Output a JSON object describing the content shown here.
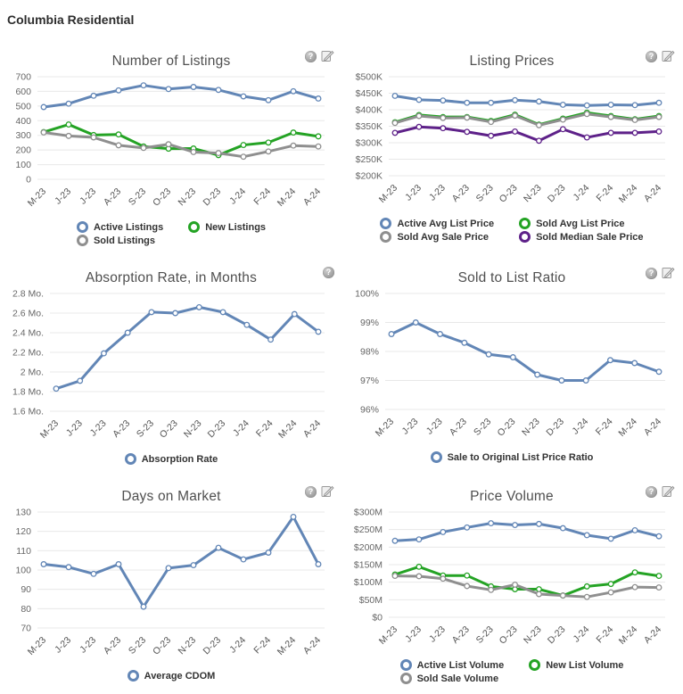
{
  "page": {
    "title": "Columbia Residential"
  },
  "chart_data": [
    {
      "type": "line",
      "title": "Number of Listings",
      "grid": true,
      "legend_position": "bottom",
      "icons": [
        "help-icon",
        "edit-chart-icon"
      ],
      "x_labels": [
        "M-23",
        "J-23",
        "J-23",
        "A-23",
        "S-23",
        "O-23",
        "N-23",
        "D-23",
        "J-24",
        "F-24",
        "M-24",
        "A-24"
      ],
      "y_ticks": [
        "700",
        "600",
        "500",
        "400",
        "300",
        "200",
        "100",
        "0"
      ],
      "ylim": [
        0,
        700
      ],
      "series": [
        {
          "name": "Active Listings",
          "color": "#6286b6",
          "values": [
            493,
            516,
            570,
            607,
            641,
            616,
            630,
            610,
            566,
            540,
            601,
            551
          ]
        },
        {
          "name": "New Listings",
          "color": "#24a324",
          "values": [
            322,
            374,
            302,
            306,
            224,
            209,
            210,
            165,
            234,
            251,
            319,
            293
          ]
        },
        {
          "name": "Sold Listings",
          "color": "#8f8f8f",
          "values": [
            320,
            296,
            286,
            232,
            214,
            239,
            186,
            179,
            154,
            190,
            230,
            224
          ]
        }
      ]
    },
    {
      "type": "line",
      "title": "Listing Prices",
      "grid": true,
      "legend_position": "bottom",
      "icons": [
        "help-icon",
        "edit-chart-icon"
      ],
      "x_labels": [
        "M-23",
        "J-23",
        "J-23",
        "A-23",
        "S-23",
        "O-23",
        "N-23",
        "D-23",
        "J-24",
        "F-24",
        "M-24",
        "A-24"
      ],
      "y_ticks": [
        "$500K",
        "$450K",
        "$400K",
        "$350K",
        "$300K",
        "$250K",
        "$200K"
      ],
      "ylim": [
        200,
        500
      ],
      "unit": "thousand USD",
      "series": [
        {
          "name": "Active Avg List Price",
          "color": "#6286b6",
          "values": [
            442,
            430,
            428,
            421,
            421,
            429,
            425,
            415,
            413,
            415,
            414,
            421
          ]
        },
        {
          "name": "Sold Avg List Price",
          "color": "#24a324",
          "values": [
            362,
            384,
            378,
            378,
            366,
            385,
            355,
            373,
            391,
            381,
            371,
            381
          ]
        },
        {
          "name": "Sold Avg Sale Price",
          "color": "#8f8f8f",
          "values": [
            360,
            381,
            375,
            376,
            363,
            382,
            353,
            370,
            387,
            378,
            369,
            378
          ]
        },
        {
          "name": "Sold Median Sale Price",
          "color": "#5e2189",
          "values": [
            330,
            348,
            344,
            333,
            321,
            334,
            306,
            341,
            316,
            330,
            330,
            334
          ]
        }
      ]
    },
    {
      "type": "line",
      "title": "Absorption Rate, in Months",
      "grid": true,
      "legend_position": "bottom",
      "icons": [
        "help-icon"
      ],
      "x_labels": [
        "M-23",
        "J-23",
        "J-23",
        "A-23",
        "S-23",
        "O-23",
        "N-23",
        "D-23",
        "J-24",
        "F-24",
        "M-24",
        "A-24"
      ],
      "y_ticks": [
        "2.8 Mo.",
        "2.6 Mo.",
        "2.4 Mo.",
        "2.2 Mo.",
        "2 Mo.",
        "1.8 Mo.",
        "1.6 Mo."
      ],
      "ylim": [
        1.6,
        2.8
      ],
      "series": [
        {
          "name": "Absorption Rate",
          "color": "#6286b6",
          "values": [
            1.83,
            1.91,
            2.19,
            2.4,
            2.61,
            2.6,
            2.66,
            2.61,
            2.48,
            2.33,
            2.59,
            2.41
          ]
        }
      ]
    },
    {
      "type": "line",
      "title": "Sold to List Ratio",
      "grid": true,
      "legend_position": "bottom",
      "icons": [
        "help-icon",
        "edit-chart-icon"
      ],
      "x_labels": [
        "M-23",
        "J-23",
        "J-23",
        "A-23",
        "S-23",
        "O-23",
        "N-23",
        "D-23",
        "J-24",
        "F-24",
        "M-24",
        "A-24"
      ],
      "y_ticks": [
        "100%",
        "99%",
        "98%",
        "97%",
        "96%"
      ],
      "ylim": [
        96,
        100
      ],
      "series": [
        {
          "name": "Sale to Original List Price Ratio",
          "color": "#6286b6",
          "values": [
            98.6,
            99,
            98.6,
            98.3,
            97.9,
            97.8,
            97.2,
            97,
            97,
            97.7,
            97.6,
            97.3
          ]
        }
      ]
    },
    {
      "type": "line",
      "title": "Days on Market",
      "grid": true,
      "legend_position": "bottom",
      "icons": [
        "help-icon",
        "edit-chart-icon"
      ],
      "x_labels": [
        "M-23",
        "J-23",
        "J-23",
        "A-23",
        "S-23",
        "O-23",
        "N-23",
        "D-23",
        "J-24",
        "F-24",
        "M-24",
        "A-24"
      ],
      "y_ticks": [
        "130",
        "120",
        "110",
        "100",
        "90",
        "80",
        "70"
      ],
      "ylim": [
        70,
        130
      ],
      "series": [
        {
          "name": "Average CDOM",
          "color": "#6286b6",
          "values": [
            103,
            101.5,
            98,
            103,
            81,
            101,
            102.5,
            111.5,
            105.5,
            109,
            127.5,
            103
          ]
        }
      ]
    },
    {
      "type": "line",
      "title": "Price Volume",
      "grid": true,
      "legend_position": "bottom",
      "icons": [
        "help-icon",
        "edit-chart-icon"
      ],
      "x_labels": [
        "M-23",
        "J-23",
        "J-23",
        "A-23",
        "S-23",
        "O-23",
        "N-23",
        "D-23",
        "J-24",
        "F-24",
        "M-24",
        "A-24"
      ],
      "y_ticks": [
        "$300M",
        "$250M",
        "$200M",
        "$150M",
        "$100M",
        "$50M",
        "$0"
      ],
      "ylim": [
        0,
        300
      ],
      "unit": "million USD",
      "series": [
        {
          "name": "Active List Volume",
          "color": "#6286b6",
          "values": [
            218,
            222,
            243,
            256,
            268,
            263,
            266,
            254,
            234,
            224,
            248,
            231
          ]
        },
        {
          "name": "New List Volume",
          "color": "#24a324",
          "values": [
            122,
            144,
            119,
            119,
            88,
            80,
            80,
            62,
            88,
            95,
            128,
            118
          ]
        },
        {
          "name": "Sold Sale Volume",
          "color": "#8f8f8f",
          "values": [
            118,
            117,
            110,
            89,
            78,
            93,
            66,
            62,
            58,
            71,
            86,
            85
          ]
        }
      ]
    }
  ]
}
